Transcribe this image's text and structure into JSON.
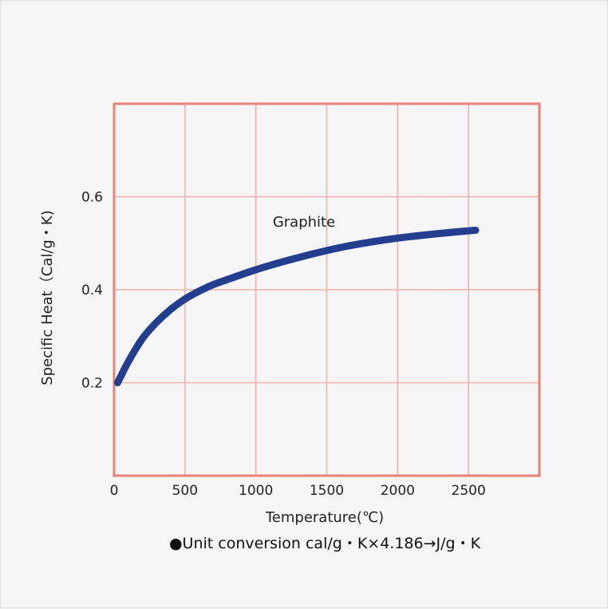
{
  "chart_data": {
    "type": "line",
    "xlabel": "Temperature(℃)",
    "ylabel": "Specific Heat（Cal/g・K)",
    "xlim": [
      0,
      3000
    ],
    "ylim": [
      0,
      0.8
    ],
    "x_ticks": [
      0,
      500,
      1000,
      1500,
      2000,
      2500
    ],
    "y_ticks": [
      0.2,
      0.4,
      0.6
    ],
    "x_tick_labels": [
      "0",
      "500",
      "1000",
      "1500",
      "2000",
      "2500"
    ],
    "y_tick_labels": [
      "0.2",
      "0.4",
      "0.6"
    ],
    "grid": true,
    "colors": {
      "series": "#233e8f",
      "grid": "#f0b0aa",
      "frame": "#e8837a"
    },
    "series": [
      {
        "name": "Graphite",
        "x": [
          25,
          100,
          200,
          300,
          400,
          500,
          600,
          700,
          800,
          1000,
          1200,
          1400,
          1600,
          1800,
          2000,
          2200,
          2400,
          2550
        ],
        "y": [
          0.2,
          0.245,
          0.295,
          0.33,
          0.358,
          0.38,
          0.397,
          0.411,
          0.422,
          0.443,
          0.461,
          0.477,
          0.491,
          0.502,
          0.511,
          0.518,
          0.524,
          0.528
        ]
      }
    ]
  },
  "footnote": "●Unit conversion cal/g・K×4.186→J/g・K"
}
